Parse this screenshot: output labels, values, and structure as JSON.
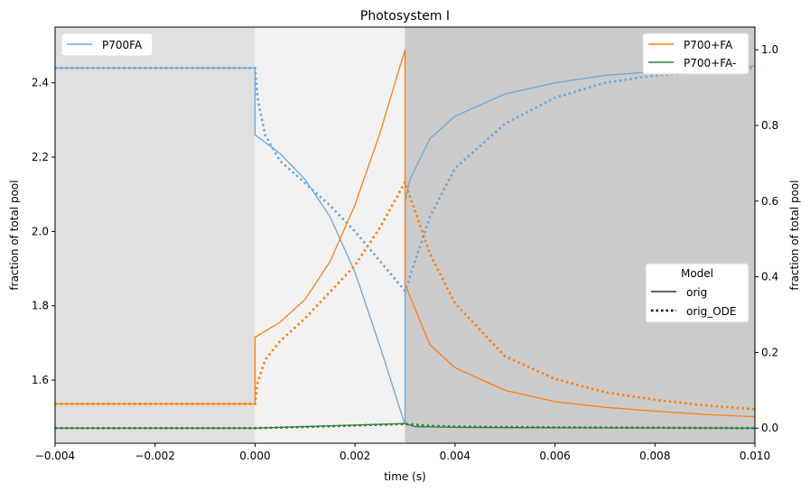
{
  "chart_data": {
    "type": "line",
    "title": "Photosystem I",
    "xlabel": "time (s)",
    "ylabel_left": "fraction of total pool",
    "ylabel_right": "fraction of total pool",
    "xlim": [
      -0.004,
      0.01
    ],
    "ylim_left": [
      1.43,
      2.55
    ],
    "ylim_right": [
      -0.04,
      1.06
    ],
    "x_ticks": [
      -0.004,
      -0.002,
      0.0,
      0.002,
      0.004,
      0.006,
      0.008,
      0.01
    ],
    "x_tick_labels": [
      "−0.004",
      "−0.002",
      "0.000",
      "0.002",
      "0.004",
      "0.006",
      "0.008",
      "0.010"
    ],
    "y_ticks_left": [
      1.6,
      1.8,
      2.0,
      2.2,
      2.4
    ],
    "y_tick_labels_left": [
      "1.6",
      "1.8",
      "2.0",
      "2.2",
      "2.4"
    ],
    "y_ticks_right": [
      0.0,
      0.2,
      0.4,
      0.6,
      0.8,
      1.0
    ],
    "y_tick_labels_right": [
      "0.0",
      "0.2",
      "0.4",
      "0.6",
      "0.8",
      "1.0"
    ],
    "background_regions": [
      {
        "x_start": -0.004,
        "x_end": 0.0,
        "color": "#e0e0e0"
      },
      {
        "x_start": 0.0,
        "x_end": 0.003,
        "color": "#f2f2f2"
      },
      {
        "x_start": 0.003,
        "x_end": 0.01,
        "color": "#cbcbcb"
      }
    ],
    "series": [
      {
        "name": "P700FA",
        "axis": "left",
        "style": "solid",
        "color": "#6aa8dd",
        "x": [
          -0.004,
          0.0,
          0.0,
          0.0005,
          0.001,
          0.0015,
          0.002,
          0.0025,
          0.003,
          0.003,
          0.0031,
          0.0035,
          0.004,
          0.005,
          0.006,
          0.007,
          0.008,
          0.009,
          0.01
        ],
        "y": [
          2.44,
          2.44,
          2.26,
          2.21,
          2.14,
          2.04,
          1.89,
          1.69,
          1.48,
          2.08,
          2.14,
          2.25,
          2.31,
          2.37,
          2.4,
          2.42,
          2.43,
          2.44,
          2.445
        ]
      },
      {
        "name": "P700FA (orig_ODE)",
        "axis": "left",
        "style": "dotted",
        "color": "#6aa8dd",
        "x": [
          -0.004,
          0.0,
          5e-05,
          0.0002,
          0.0005,
          0.001,
          0.0015,
          0.002,
          0.0025,
          0.003,
          0.0035,
          0.004,
          0.005,
          0.006,
          0.007,
          0.008,
          0.009,
          0.01
        ],
        "y": [
          2.44,
          2.44,
          2.36,
          2.26,
          2.19,
          2.13,
          2.07,
          2.0,
          1.92,
          1.84,
          2.04,
          2.17,
          2.29,
          2.36,
          2.4,
          2.42,
          2.43,
          2.44
        ]
      },
      {
        "name": "P700+FA",
        "axis": "right",
        "style": "solid",
        "color": "#ff7f0e",
        "x": [
          -0.004,
          0.0,
          0.0,
          0.0005,
          0.001,
          0.0015,
          0.002,
          0.0025,
          0.003,
          0.003,
          0.0035,
          0.004,
          0.005,
          0.006,
          0.007,
          0.008,
          0.009,
          0.01
        ],
        "y": [
          0.064,
          0.064,
          0.24,
          0.28,
          0.34,
          0.44,
          0.59,
          0.78,
          1.0,
          0.38,
          0.22,
          0.16,
          0.1,
          0.07,
          0.055,
          0.045,
          0.036,
          0.03
        ]
      },
      {
        "name": "P700+FA (orig_ODE)",
        "axis": "right",
        "style": "dotted",
        "color": "#ff7f0e",
        "x": [
          -0.004,
          0.0,
          5e-05,
          0.0002,
          0.0005,
          0.001,
          0.0015,
          0.002,
          0.0025,
          0.003,
          0.0035,
          0.004,
          0.005,
          0.006,
          0.007,
          0.008,
          0.009,
          0.01
        ],
        "y": [
          0.064,
          0.064,
          0.12,
          0.18,
          0.23,
          0.29,
          0.36,
          0.43,
          0.53,
          0.65,
          0.46,
          0.33,
          0.19,
          0.13,
          0.095,
          0.075,
          0.06,
          0.05
        ]
      },
      {
        "name": "P700+FA-",
        "axis": "right",
        "style": "solid",
        "color": "#2a7f3f",
        "x": [
          -0.004,
          0.0,
          0.001,
          0.002,
          0.003,
          0.0032,
          0.004,
          0.006,
          0.01
        ],
        "y": [
          0.0,
          0.0,
          0.004,
          0.008,
          0.012,
          0.004,
          0.002,
          0.001,
          0.0
        ]
      },
      {
        "name": "P700+FA- (orig_ODE)",
        "axis": "right",
        "style": "dotted",
        "color": "#2a7f3f",
        "x": [
          -0.004,
          0.0,
          0.001,
          0.002,
          0.003,
          0.0035,
          0.004,
          0.006,
          0.01
        ],
        "y": [
          0.0,
          0.0,
          0.003,
          0.007,
          0.011,
          0.006,
          0.004,
          0.002,
          0.0
        ]
      }
    ],
    "legend_left": {
      "placement": "upper-left",
      "entries": [
        {
          "label": "P700FA",
          "color": "#6aa8dd"
        }
      ]
    },
    "legend_right": {
      "placement": "upper-right",
      "entries": [
        {
          "label": "P700+FA",
          "color": "#ff7f0e"
        },
        {
          "label": "P700+FA-",
          "color": "#2a7f3f"
        }
      ]
    },
    "legend_model": {
      "placement": "center-right",
      "title": "Model",
      "entries": [
        {
          "label": "orig",
          "style": "solid"
        },
        {
          "label": "orig_ODE",
          "style": "dotted"
        }
      ]
    }
  }
}
